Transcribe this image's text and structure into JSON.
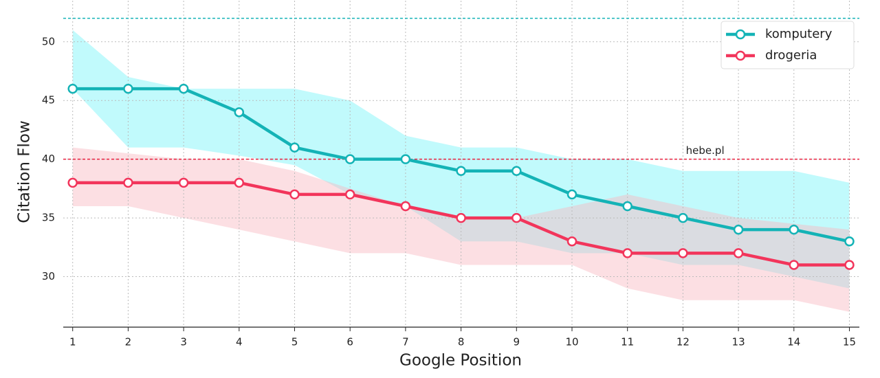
{
  "chart_data": {
    "type": "line",
    "x_label": "Google Position",
    "y_label": "Citation Flow",
    "x": [
      1,
      2,
      3,
      4,
      5,
      6,
      7,
      8,
      9,
      10,
      11,
      12,
      13,
      14,
      15
    ],
    "xlim": [
      0.83,
      15.18
    ],
    "xticks": [
      1,
      2,
      3,
      4,
      5,
      6,
      7,
      8,
      9,
      10,
      11,
      12,
      13,
      14,
      15
    ],
    "ylim": [
      25.7,
      53.5
    ],
    "yticks": [
      30,
      35,
      40,
      45,
      50
    ],
    "grid": true,
    "legend": "upper right",
    "series": [
      {
        "name": "komputery",
        "color": "#14b3b6",
        "band_color": "#b6f9fb",
        "values": [
          46,
          46,
          46,
          44,
          41,
          40,
          40,
          39,
          39,
          37,
          36,
          35,
          34,
          34,
          33
        ],
        "band_upper": [
          51,
          47,
          46,
          46,
          46,
          45,
          42,
          41,
          41,
          40,
          40,
          39,
          39,
          39,
          38
        ],
        "band_lower": [
          46,
          41,
          41,
          40.3,
          39.5,
          37,
          36,
          33,
          33,
          32,
          32,
          31,
          31,
          30,
          29
        ]
      },
      {
        "name": "drogeria",
        "color": "#f2355b",
        "band_color": "#f9b9c1",
        "values": [
          38,
          38,
          38,
          38,
          37,
          37,
          36,
          35,
          35,
          33,
          32,
          32,
          32,
          31,
          31
        ],
        "band_upper": [
          41,
          40.5,
          40,
          40,
          39,
          37.5,
          36,
          35,
          35,
          36,
          37,
          36,
          35,
          34.5,
          34
        ],
        "band_lower": [
          36,
          36,
          35,
          34,
          33,
          32,
          32,
          31,
          31,
          31,
          29,
          28,
          28,
          28,
          27
        ]
      }
    ],
    "reference_lines": [
      {
        "value": 40,
        "label": "hebe.pl",
        "color": "#e8213f"
      },
      {
        "value": 52,
        "color": "#14b3b6"
      }
    ]
  }
}
